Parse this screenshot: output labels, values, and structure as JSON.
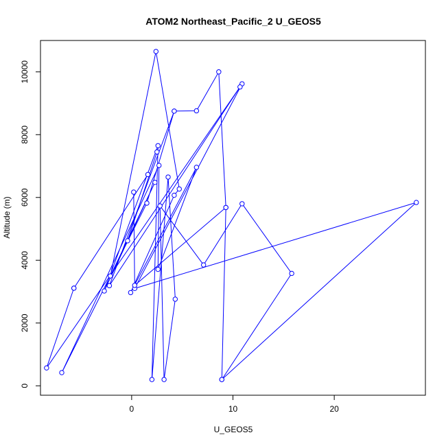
{
  "chart_data": {
    "type": "line",
    "title": "ATOM2 Northeast_Pacific_2 U_GEOS5",
    "xlabel": "U_GEOS5",
    "ylabel": "Altitude (m)",
    "xlim": [
      -9,
      29
    ],
    "ylim": [
      -300,
      11000
    ],
    "x_ticks": [
      0,
      10,
      20
    ],
    "y_ticks": [
      0,
      2000,
      4000,
      6000,
      8000,
      10000
    ],
    "series": [
      {
        "color": "#0000ff",
        "marker": "open-circle",
        "points": [
          {
            "x": 8.9,
            "y": 200
          },
          {
            "x": 15.8,
            "y": 3580
          },
          {
            "x": 10.9,
            "y": 5800
          },
          {
            "x": 7.1,
            "y": 3850
          },
          {
            "x": 2.8,
            "y": 5730
          },
          {
            "x": 3.2,
            "y": 200
          },
          {
            "x": 4.3,
            "y": 2760
          },
          {
            "x": 3.6,
            "y": 6650
          },
          {
            "x": 2.0,
            "y": 200
          },
          {
            "x": 2.6,
            "y": 7650
          },
          {
            "x": -2.7,
            "y": 3020
          },
          {
            "x": 2.3,
            "y": 6480
          },
          {
            "x": -2.1,
            "y": 3500
          },
          {
            "x": 2.4,
            "y": 10650
          },
          {
            "x": 4.7,
            "y": 6270
          },
          {
            "x": 4.2,
            "y": 6070
          },
          {
            "x": -0.1,
            "y": 2970
          },
          {
            "x": 6.4,
            "y": 6960
          },
          {
            "x": 2.6,
            "y": 3710
          },
          {
            "x": 2.7,
            "y": 7020
          },
          {
            "x": -6.9,
            "y": 420
          },
          {
            "x": 1.5,
            "y": 5820
          },
          {
            "x": 4.2,
            "y": 8750
          },
          {
            "x": -2.2,
            "y": 3190
          },
          {
            "x": 10.9,
            "y": 9620
          },
          {
            "x": 0.3,
            "y": 3100
          },
          {
            "x": 28.1,
            "y": 5840
          },
          {
            "x": 8.9,
            "y": 200
          },
          {
            "x": 9.3,
            "y": 5680
          },
          {
            "x": 8.6,
            "y": 10000
          },
          {
            "x": 6.4,
            "y": 8760
          },
          {
            "x": 4.2,
            "y": 8750
          }
        ]
      }
    ],
    "extra_segments": [
      {
        "points": [
          {
            "x": -5.7,
            "y": 3110
          },
          {
            "x": -8.4,
            "y": 570
          },
          {
            "x": 10.7,
            "y": 9520
          }
        ]
      },
      {
        "points": [
          {
            "x": 0.2,
            "y": 6170
          },
          {
            "x": 0.3,
            "y": 3200
          },
          {
            "x": 9.3,
            "y": 5680
          }
        ]
      },
      {
        "points": [
          {
            "x": 1.6,
            "y": 6730
          },
          {
            "x": -5.7,
            "y": 3110
          }
        ]
      },
      {
        "points": [
          {
            "x": -0.4,
            "y": 4620
          },
          {
            "x": 2.5,
            "y": 7450
          }
        ]
      }
    ]
  }
}
